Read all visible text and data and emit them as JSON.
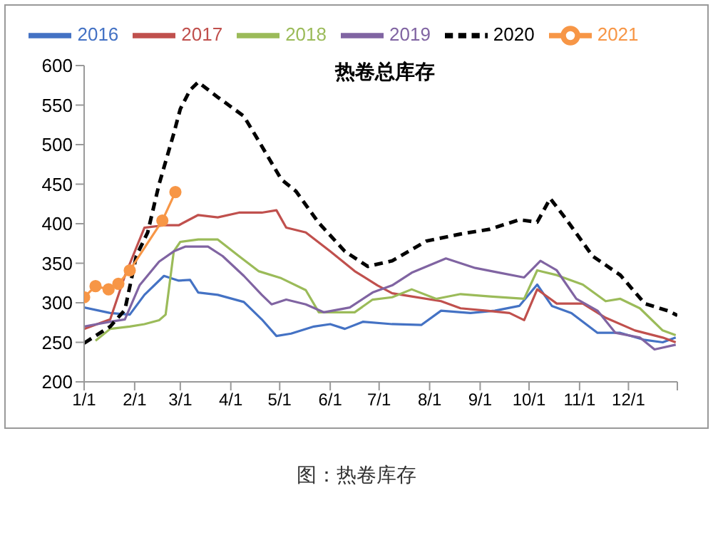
{
  "chart_data": {
    "type": "line",
    "title": "热卷总库存",
    "annotations": [
      "图：热卷库存"
    ],
    "xlim": [
      "--01-01",
      "--12-31"
    ],
    "xticks": [
      {
        "value": "--01-01",
        "label": "1/1"
      },
      {
        "value": "--02-01",
        "label": "2/1"
      },
      {
        "value": "--03-01",
        "label": "3/1"
      },
      {
        "value": "--04-01",
        "label": "4/1"
      },
      {
        "value": "--05-01",
        "label": "5/1"
      },
      {
        "value": "--06-01",
        "label": "6/1"
      },
      {
        "value": "--07-01",
        "label": "7/1"
      },
      {
        "value": "--08-01",
        "label": "8/1"
      },
      {
        "value": "--09-01",
        "label": "9/1"
      },
      {
        "value": "--10-01",
        "label": "10/1"
      },
      {
        "value": "--11-01",
        "label": "11/1"
      },
      {
        "value": "--12-01",
        "label": "12/1"
      },
      {
        "value": "--12-31",
        "label": null
      }
    ],
    "ylim": [
      200,
      600
    ],
    "yticks": [
      200,
      250,
      300,
      350,
      400,
      450,
      500,
      550,
      600
    ],
    "grid": false,
    "legend": "top",
    "marker": "none",
    "line_style": "solid",
    "series": [
      {
        "name": "2016",
        "color": "#4472c4",
        "x": [
          "--01-01",
          "--01-17",
          "--01-29",
          "--02-07",
          "--02-19",
          "--02-28",
          "--03-07",
          "--03-12",
          "--03-24",
          "--04-09",
          "--04-20",
          "--04-29",
          "--05-08",
          "--05-22",
          "--06-01",
          "--06-10",
          "--06-21",
          "--07-09",
          "--07-27",
          "--08-08",
          "--08-26",
          "--09-10",
          "--09-25",
          "--10-06",
          "--10-15",
          "--10-27",
          "--11-12",
          "--11-26",
          "--12-11",
          "--12-22",
          "--12-30"
        ],
        "values": [
          294,
          287,
          285,
          310,
          334,
          328,
          329,
          313,
          310,
          301,
          279,
          258,
          261,
          270,
          273,
          267,
          276,
          273,
          272,
          290,
          287,
          290,
          296,
          323,
          296,
          287,
          262,
          262,
          253,
          250,
          256
        ]
      },
      {
        "name": "2017",
        "color": "#c0504d",
        "x": [
          "--01-01",
          "--01-17",
          "--01-26",
          "--02-07",
          "--02-19",
          "--02-28",
          "--03-12",
          "--03-24",
          "--04-06",
          "--04-20",
          "--04-29",
          "--05-05",
          "--05-17",
          "--06-01",
          "--06-16",
          "--06-30",
          "--07-09",
          "--07-21",
          "--08-08",
          "--08-20",
          "--09-05",
          "--09-19",
          "--09-28",
          "--10-06",
          "--10-18",
          "--11-03",
          "--11-17",
          "--12-05",
          "--12-22",
          "--12-30"
        ],
        "values": [
          267,
          279,
          334,
          395,
          398,
          398,
          411,
          408,
          414,
          414,
          417,
          395,
          389,
          365,
          340,
          322,
          312,
          308,
          302,
          293,
          290,
          287,
          278,
          317,
          299,
          299,
          281,
          265,
          256,
          250
        ]
      },
      {
        "name": "2018",
        "color": "#9bbb59",
        "x": [
          "--01-08",
          "--01-17",
          "--01-29",
          "--02-07",
          "--02-16",
          "--02-20",
          "--02-25",
          "--03-01",
          "--03-12",
          "--03-24",
          "--04-06",
          "--04-18",
          "--05-02",
          "--05-17",
          "--05-25",
          "--06-16",
          "--06-27",
          "--07-09",
          "--07-21",
          "--08-05",
          "--08-20",
          "--09-07",
          "--09-28",
          "--10-06",
          "--10-18",
          "--11-03",
          "--11-17",
          "--11-26",
          "--12-08",
          "--12-22",
          "--12-30"
        ],
        "values": [
          252,
          267,
          270,
          273,
          278,
          285,
          365,
          377,
          380,
          380,
          359,
          340,
          331,
          316,
          288,
          288,
          304,
          307,
          317,
          305,
          311,
          308,
          305,
          341,
          335,
          323,
          302,
          305,
          293,
          265,
          259
        ]
      },
      {
        "name": "2019",
        "color": "#8064a2",
        "x": [
          "--01-01",
          "--01-17",
          "--01-26",
          "--02-04",
          "--02-16",
          "--02-25",
          "--03-04",
          "--03-18",
          "--03-27",
          "--04-09",
          "--04-20",
          "--04-26",
          "--05-05",
          "--05-17",
          "--05-28",
          "--06-13",
          "--06-27",
          "--07-09",
          "--07-21",
          "--08-11",
          "--08-29",
          "--09-13",
          "--09-28",
          "--10-08",
          "--10-18",
          "--10-30",
          "--11-12",
          "--11-23",
          "--12-08",
          "--12-17",
          "--12-30"
        ],
        "values": [
          270,
          276,
          279,
          322,
          352,
          365,
          371,
          371,
          359,
          334,
          310,
          298,
          304,
          298,
          288,
          294,
          313,
          322,
          338,
          356,
          344,
          338,
          332,
          353,
          341,
          305,
          290,
          262,
          256,
          241,
          247
        ]
      },
      {
        "name": "2020",
        "color": "#000000",
        "line_style": "dashed",
        "x": [
          "--01-01",
          "--01-17",
          "--01-26",
          "--02-02",
          "--02-09",
          "--02-16",
          "--02-25",
          "--03-01",
          "--03-07",
          "--03-12",
          "--03-24",
          "--04-09",
          "--04-18",
          "--05-02",
          "--05-11",
          "--05-25",
          "--06-10",
          "--06-24",
          "--07-09",
          "--07-30",
          "--08-20",
          "--09-07",
          "--09-25",
          "--10-06",
          "--10-14",
          "--10-24",
          "--11-09",
          "--11-26",
          "--12-11",
          "--12-25",
          "--12-31"
        ],
        "values": [
          249,
          270,
          291,
          359,
          389,
          450,
          514,
          545,
          569,
          579,
          560,
          536,
          505,
          456,
          441,
          401,
          365,
          346,
          353,
          378,
          387,
          393,
          405,
          402,
          432,
          405,
          359,
          335,
          299,
          290,
          284
        ]
      },
      {
        "name": "2021",
        "color": "#f79646",
        "marker": "circle",
        "x": [
          "--01-01",
          "--01-08",
          "--01-16",
          "--01-22",
          "--01-29",
          "--02-18",
          "--02-26"
        ],
        "values": [
          307,
          321,
          317,
          324,
          341,
          404,
          440
        ]
      }
    ]
  }
}
